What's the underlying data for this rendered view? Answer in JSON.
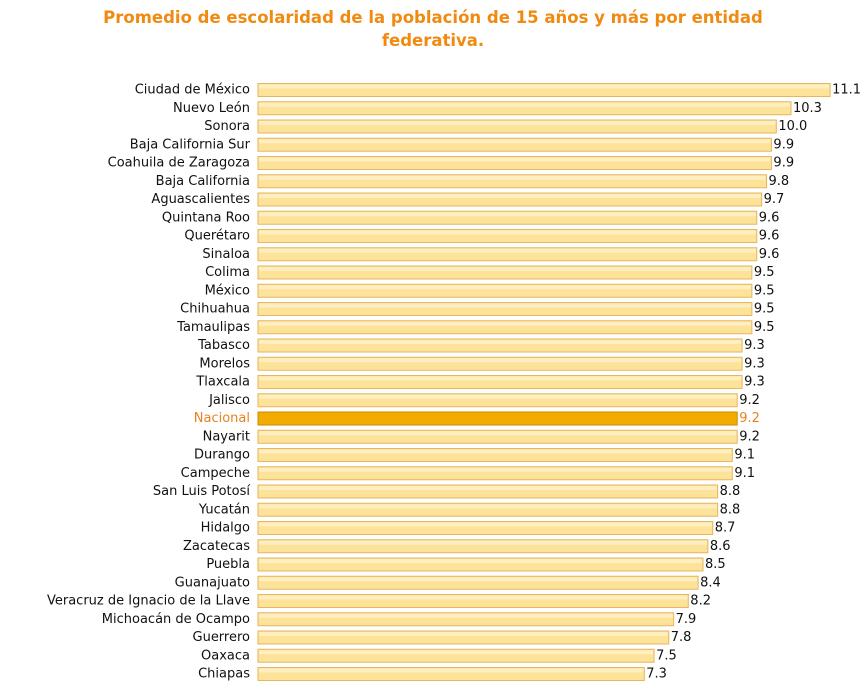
{
  "chart_data": {
    "type": "barh",
    "title": "Promedio de escolaridad de la población de 15 años y más por entidad federativa.",
    "categories": [
      "Ciudad de México",
      "Nuevo León",
      "Sonora",
      "Baja California Sur",
      "Coahuila de Zaragoza",
      "Baja California",
      "Aguascalientes",
      "Quintana Roo",
      "Querétaro",
      "Sinaloa",
      "Colima",
      "México",
      "Chihuahua",
      "Tamaulipas",
      "Tabasco",
      "Morelos",
      "Tlaxcala",
      "Jalisco",
      "Nacional",
      "Nayarit",
      "Durango",
      "Campeche",
      "San Luis Potosí",
      "Yucatán",
      "Hidalgo",
      "Zacatecas",
      "Puebla",
      "Guanajuato",
      "Veracruz de Ignacio de la Llave",
      "Michoacán de Ocampo",
      "Guerrero",
      "Oaxaca",
      "Chiapas"
    ],
    "values": [
      11.1,
      10.3,
      10.0,
      9.9,
      9.9,
      9.8,
      9.7,
      9.6,
      9.6,
      9.6,
      9.5,
      9.5,
      9.5,
      9.5,
      9.3,
      9.3,
      9.3,
      9.2,
      9.2,
      9.2,
      9.1,
      9.1,
      8.8,
      8.8,
      8.7,
      8.6,
      8.5,
      8.4,
      8.2,
      7.9,
      7.8,
      7.5,
      7.3
    ],
    "value_labels": [
      "11.1",
      "10.3",
      "10.0",
      "9.9",
      "9.9",
      "9.8",
      "9.7",
      "9.6",
      "9.6",
      "9.6",
      "9.5",
      "9.5",
      "9.5",
      "9.5",
      "9.3",
      "9.3",
      "9.3",
      "9.2",
      "9.2",
      "9.2",
      "9.1",
      "9.1",
      "8.8",
      "8.8",
      "8.7",
      "8.6",
      "8.5",
      "8.4",
      "8.2",
      "7.9",
      "7.8",
      "7.5",
      "7.3"
    ],
    "color": "#fde29a",
    "highlight": {
      "index": 18,
      "color": "#f2ac00",
      "label_color": "#e8821e"
    },
    "xlim": [
      -0.6,
      11.2
    ]
  }
}
